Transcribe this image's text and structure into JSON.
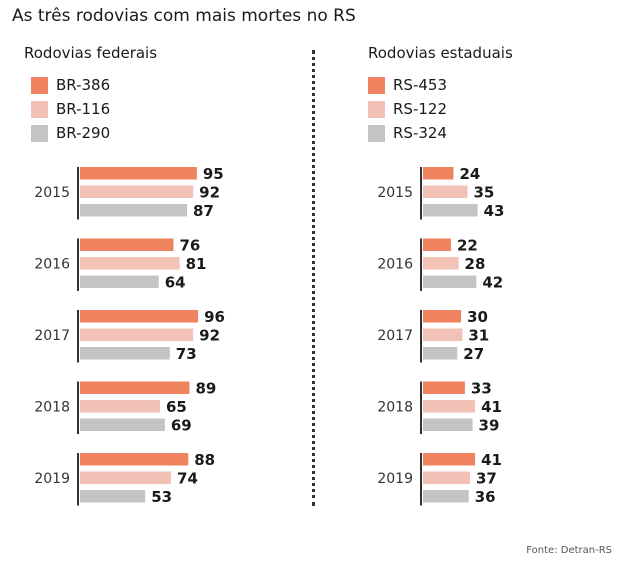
{
  "title": "As três rodovias com mais mortes no RS",
  "source": "Fonte: Detran-RS",
  "colors": [
    "#F0835F",
    "#F2C2B6",
    "#C4C4C4"
  ],
  "chart_data": [
    {
      "type": "bar",
      "title": "Rodovias federais",
      "categories": [
        "2015",
        "2016",
        "2017",
        "2018",
        "2019"
      ],
      "series": [
        {
          "name": "BR-386",
          "values": [
            95,
            76,
            96,
            89,
            88
          ]
        },
        {
          "name": "BR-116",
          "values": [
            92,
            81,
            92,
            65,
            74
          ]
        },
        {
          "name": "BR-290",
          "values": [
            87,
            64,
            73,
            69,
            53
          ]
        }
      ]
    },
    {
      "type": "bar",
      "title": "Rodovias estaduais",
      "categories": [
        "2015",
        "2016",
        "2017",
        "2018",
        "2019"
      ],
      "series": [
        {
          "name": "RS-453",
          "values": [
            24,
            22,
            30,
            33,
            41
          ]
        },
        {
          "name": "RS-122",
          "values": [
            35,
            28,
            31,
            41,
            37
          ]
        },
        {
          "name": "RS-324",
          "values": [
            43,
            42,
            27,
            39,
            36
          ]
        }
      ]
    }
  ]
}
